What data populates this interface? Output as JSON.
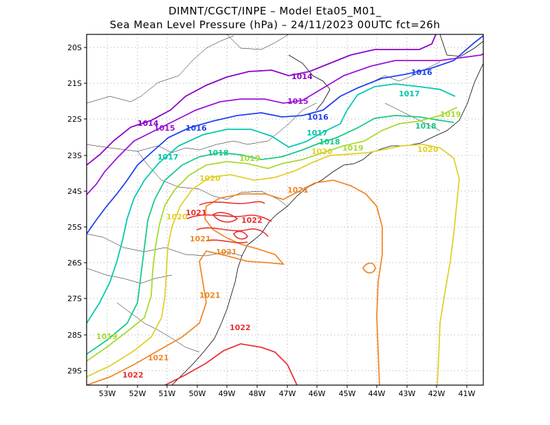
{
  "title": {
    "line1": "DIMNT/CGCT/INPE –  Model Eta05_M01_",
    "line2": "Sea Mean Level Pressure (hPa) – 24/11/2023 00UTC fct=26h"
  },
  "axes": {
    "lon_labels": [
      "53W",
      "52W",
      "51W",
      "50W",
      "49W",
      "48W",
      "47W",
      "46W",
      "45W",
      "44W",
      "43W",
      "42W",
      "41W"
    ],
    "lat_labels": [
      "20S",
      "21S",
      "22S",
      "23S",
      "24S",
      "25S",
      "26S",
      "27S",
      "28S",
      "29S"
    ]
  },
  "levels": {
    "1014": "#8a00c8",
    "1015": "#9b10d8",
    "1016": "#1f3ff0",
    "1017": "#00c8b0",
    "1018": "#18c888",
    "1019": "#a8d830",
    "1020": "#e0d028",
    "1021": "#f08828",
    "1022": "#e83030"
  },
  "contour_labels": [
    {
      "text": "1014",
      "level": "1014"
    },
    {
      "text": "1014",
      "level": "1014"
    },
    {
      "text": "1015",
      "level": "1015"
    },
    {
      "text": "1015",
      "level": "1015"
    },
    {
      "text": "1016",
      "level": "1016"
    },
    {
      "text": "1016",
      "level": "1016"
    },
    {
      "text": "1016",
      "level": "1016"
    },
    {
      "text": "1017",
      "level": "1017"
    },
    {
      "text": "1017",
      "level": "1017"
    },
    {
      "text": "1017",
      "level": "1017"
    },
    {
      "text": "1018",
      "level": "1018"
    },
    {
      "text": "1018",
      "level": "1018"
    },
    {
      "text": "1018",
      "level": "1018"
    },
    {
      "text": "1019",
      "level": "1019"
    },
    {
      "text": "1019",
      "level": "1019"
    },
    {
      "text": "1019",
      "level": "1019"
    },
    {
      "text": "1019",
      "level": "1019"
    },
    {
      "text": "1020",
      "level": "1020"
    },
    {
      "text": "1020",
      "level": "1020"
    },
    {
      "text": "1020",
      "level": "1020"
    },
    {
      "text": "1020",
      "level": "1020"
    },
    {
      "text": "1021",
      "level": "1021"
    },
    {
      "text": "1021",
      "level": "1021"
    },
    {
      "text": "1021",
      "level": "1021"
    },
    {
      "text": "1021",
      "level": "1021"
    },
    {
      "text": "1021",
      "level": "1021"
    },
    {
      "text": "1021",
      "level": "1021"
    },
    {
      "text": "1022",
      "level": "1022"
    },
    {
      "text": "1022",
      "level": "1022"
    },
    {
      "text": "1022",
      "level": "1022"
    }
  ]
}
